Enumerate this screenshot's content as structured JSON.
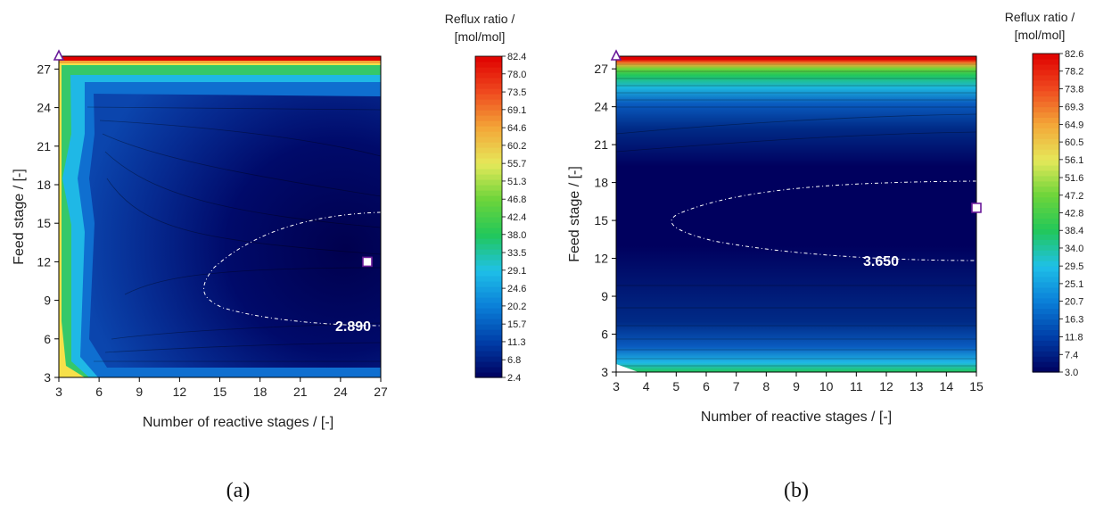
{
  "chart_data": [
    {
      "type": "heatmap",
      "caption": "(a)",
      "xlabel": "Number of reactive stages / [-]",
      "ylabel": "Feed stage / [-]",
      "xlim": [
        3,
        27
      ],
      "ylim": [
        3,
        28
      ],
      "xticks": [
        3,
        6,
        9,
        12,
        15,
        18,
        21,
        24,
        27
      ],
      "yticks": [
        3,
        6,
        9,
        12,
        15,
        18,
        21,
        24,
        27
      ],
      "colorbar_title": [
        "Reflux ratio /",
        "[mol/mol]"
      ],
      "colorbar_ticks": [
        2.4,
        6.8,
        11.3,
        15.7,
        20.2,
        24.6,
        29.1,
        33.5,
        38.0,
        42.4,
        46.8,
        51.3,
        55.7,
        60.2,
        64.6,
        69.1,
        73.5,
        78.0,
        82.4
      ],
      "colorbar_range": [
        2.4,
        82.4
      ],
      "min_contour_label": "2.890",
      "min_contour_value": 2.89,
      "triangle_marker": {
        "x": 3,
        "y": 28
      },
      "square_marker": {
        "x": 26,
        "y": 12
      }
    },
    {
      "type": "heatmap",
      "caption": "(b)",
      "xlabel": "Number of reactive stages / [-]",
      "ylabel": "Feed stage / [-]",
      "xlim": [
        3,
        15
      ],
      "ylim": [
        3,
        28
      ],
      "xticks": [
        3,
        4,
        5,
        6,
        7,
        8,
        9,
        10,
        11,
        12,
        13,
        14,
        15
      ],
      "yticks": [
        3,
        6,
        9,
        12,
        15,
        18,
        21,
        24,
        27
      ],
      "colorbar_title": [
        "Reflux ratio /",
        "[mol/mol]"
      ],
      "colorbar_ticks": [
        3.0,
        7.4,
        11.8,
        16.3,
        20.7,
        25.1,
        29.5,
        34.0,
        38.4,
        42.8,
        47.2,
        51.6,
        56.1,
        60.5,
        64.9,
        69.3,
        73.8,
        78.2,
        82.6
      ],
      "colorbar_range": [
        3.0,
        82.6
      ],
      "min_contour_label": "3.650",
      "min_contour_value": 3.65,
      "triangle_marker": {
        "x": 3,
        "y": 28
      },
      "square_marker": {
        "x": 15,
        "y": 16
      }
    }
  ],
  "colors": {
    "colormap": [
      "#00005e",
      "#003ea8",
      "#0a7fd8",
      "#1fc0e8",
      "#22c75a",
      "#6dd53a",
      "#e6e85a",
      "#f3a638",
      "#ef4a1f",
      "#e00000"
    ],
    "marker": "#6a1b9a"
  }
}
